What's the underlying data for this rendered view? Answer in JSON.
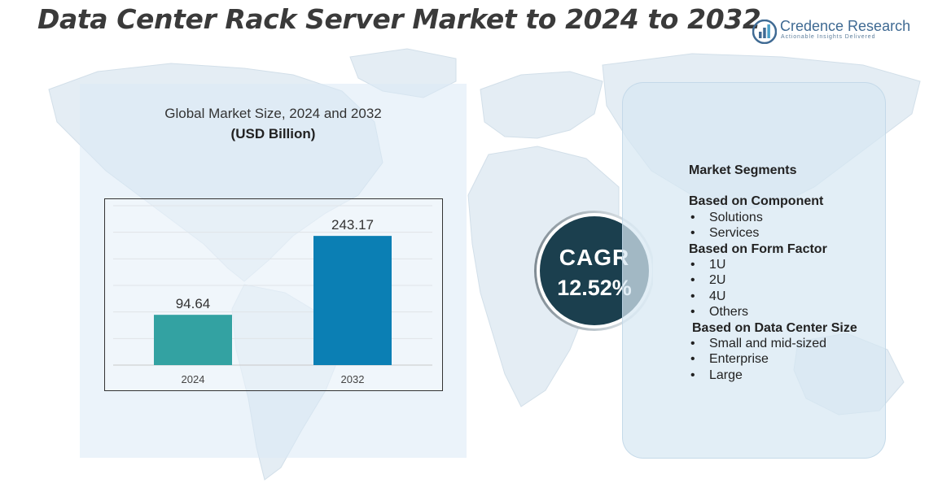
{
  "title": "Data Center Rack Server Market to 2024 to 2032",
  "brand": {
    "name": "Credence Research",
    "tagline": "Actionable Insights Delivered",
    "icon": "bar-chart-logo-icon"
  },
  "chart_data": {
    "type": "bar",
    "title": "Global Market Size, 2024 and 2032",
    "unit": "(USD Billion)",
    "categories": [
      "2024",
      "2032"
    ],
    "values": [
      94.64,
      243.17
    ],
    "data_labels": [
      "94.64",
      "243.17"
    ],
    "ylim": [
      0,
      300
    ],
    "grid": true,
    "bar_colors": [
      "#33a2a2",
      "#0b7fb4"
    ]
  },
  "cagr": {
    "label": "CAGR",
    "value": "12.52%"
  },
  "segments": {
    "heading": "Market Segments",
    "bullet": "•",
    "groups": [
      {
        "title": "Based on Component",
        "items": [
          "Solutions",
          "Services"
        ]
      },
      {
        "title": "Based on Form Factor",
        "items": [
          "1U",
          "2U",
          "4U",
          "Others"
        ]
      },
      {
        "title": "Based on Data Center Size",
        "items": [
          "Small and mid-sized",
          "Enterprise",
          "Large"
        ]
      }
    ]
  },
  "colors": {
    "title_text": "#3a3a3a",
    "cagr_circle": "#1b3f4e",
    "brand": "#3f6a93"
  }
}
